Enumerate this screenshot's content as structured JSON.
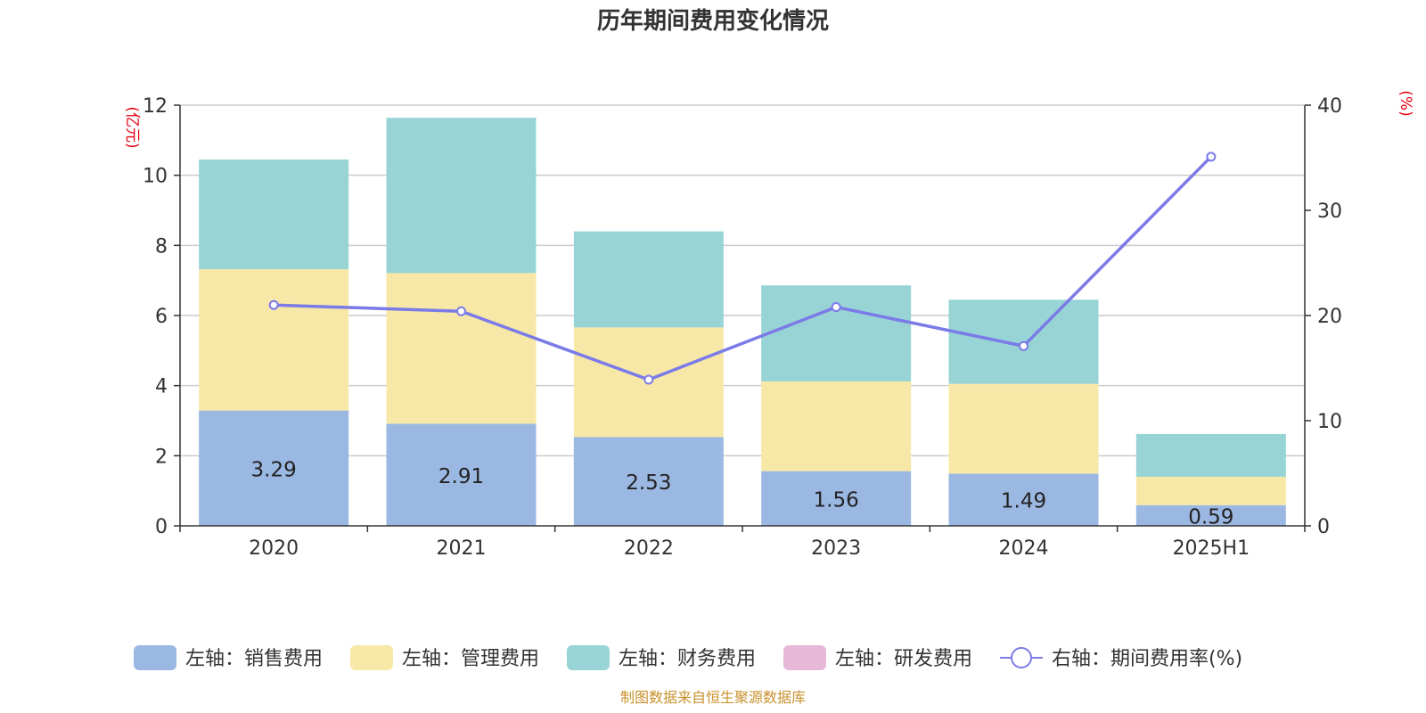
{
  "chart_data": {
    "type": "bar",
    "title": "历年期间费用变化情况",
    "categories": [
      "2020",
      "2021",
      "2022",
      "2023",
      "2024",
      "2025H1"
    ],
    "left_axis": {
      "unit": "(亿元)",
      "ylim": [
        0,
        12
      ],
      "ticks": [
        "0",
        "2",
        "4",
        "6",
        "8",
        "10",
        "12"
      ]
    },
    "right_axis": {
      "unit": "(%)",
      "ylim": [
        0,
        40
      ],
      "ticks": [
        "0",
        "10",
        "20",
        "30",
        "40"
      ]
    },
    "series": [
      {
        "name": "左轴：销售费用",
        "axis": "left",
        "type": "bar",
        "stack": "cost",
        "color": "#9bb8e2",
        "values": [
          3.29,
          2.91,
          2.53,
          1.56,
          1.49,
          0.59
        ],
        "labels": [
          "3.29",
          "2.91",
          "2.53",
          "1.56",
          "1.49",
          "0.59"
        ]
      },
      {
        "name": "左轴：管理费用",
        "axis": "left",
        "type": "bar",
        "stack": "cost",
        "color": "#f7e8a8",
        "values": [
          4.03,
          4.3,
          3.13,
          2.56,
          2.56,
          0.81
        ]
      },
      {
        "name": "左轴：财务费用",
        "axis": "left",
        "type": "bar",
        "stack": "cost",
        "color": "#98d4d5",
        "values": [
          3.13,
          4.43,
          2.74,
          2.74,
          2.4,
          1.22
        ]
      },
      {
        "name": "左轴：研发费用",
        "axis": "left",
        "type": "bar",
        "stack": "cost",
        "color": "#e8b8d8",
        "values": [
          0,
          0,
          0,
          0,
          0,
          0
        ]
      },
      {
        "name": "右轴：期间费用率(%)",
        "axis": "right",
        "type": "line",
        "color": "#7b7be8",
        "values": [
          21.0,
          20.4,
          13.9,
          20.8,
          17.1,
          35.1
        ]
      }
    ],
    "grid": true,
    "legend_position": "bottom"
  },
  "source": "制图数据来自恒生聚源数据库"
}
